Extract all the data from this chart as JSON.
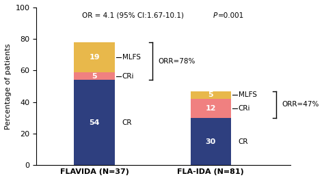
{
  "bars": {
    "FLAVIDA (N=37)": {
      "CR": 54,
      "CRi": 5,
      "MLFS": 19
    },
    "FLA-IDA (N=81)": {
      "CR": 30,
      "CRi": 12,
      "MLFS": 5
    }
  },
  "colors": {
    "CR": "#2e3f7f",
    "CRi": "#f08080",
    "MLFS": "#e8b84b"
  },
  "ylabel": "Percentage of patients",
  "ylim": [
    0,
    100
  ],
  "yticks": [
    0,
    20,
    40,
    60,
    80,
    100
  ],
  "x_positions": [
    0.3,
    1.1
  ],
  "bar_width": 0.28,
  "top_annotation_plain": "OR = 4.1 (95% CI:1.67-10.1)",
  "top_annotation_italic": "P=0.001",
  "orr1_text": "ORR=78%",
  "orr2_text": "ORR=47%",
  "figsize": [
    4.74,
    2.64
  ],
  "dpi": 100,
  "xtick_labels": [
    "FLAVIDA (N=37)",
    "FLA-IDA (N=81)"
  ]
}
